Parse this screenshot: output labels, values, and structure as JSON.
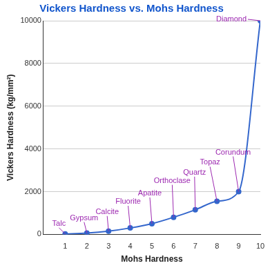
{
  "chart_data": {
    "type": "line",
    "title": "Vickers Hardness vs. Mohs Hardness",
    "x_label": "Mohs Hardness",
    "y_label": "Vickers Hardness (kg/mm²)",
    "x": [
      1,
      2,
      3,
      4,
      5,
      6,
      7,
      8,
      9,
      10
    ],
    "values": [
      20,
      60,
      150,
      300,
      500,
      800,
      1150,
      1550,
      2000,
      10000
    ],
    "annotations": [
      "Talc",
      "Gypsum",
      "Calcite",
      "Fluorite",
      "Apatite",
      "Orthoclase",
      "Quartz",
      "Topaz",
      "Corundum",
      "Diamond"
    ],
    "color": "#3366cc",
    "marker": "circle",
    "xlim": [
      0,
      10
    ],
    "xticks": [
      1,
      2,
      3,
      4,
      5,
      6,
      7,
      8,
      9,
      10
    ],
    "ylim": [
      0,
      10000
    ],
    "yticks": [
      0,
      2000,
      4000,
      6000,
      8000,
      10000
    ],
    "grid": true
  }
}
